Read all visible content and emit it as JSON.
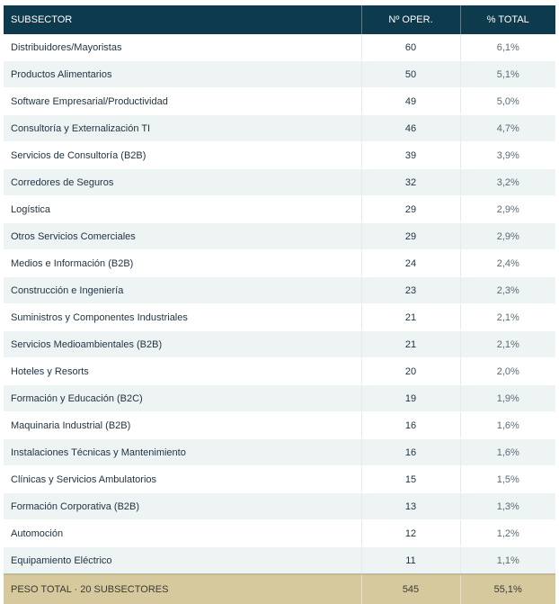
{
  "header": {
    "subsector": "SUBSECTOR",
    "operations": "Nº OPER.",
    "percent": "% TOTAL"
  },
  "rows": [
    {
      "name": "Distribuidores/Mayoristas",
      "operations": "60",
      "percent": "6,1%"
    },
    {
      "name": "Productos Alimentarios",
      "operations": "50",
      "percent": "5,1%"
    },
    {
      "name": "Software Empresarial/Productividad",
      "operations": "49",
      "percent": "5,0%"
    },
    {
      "name": "Consultoría y Externalización TI",
      "operations": "46",
      "percent": "4,7%"
    },
    {
      "name": "Servicios de Consultoría (B2B)",
      "operations": "39",
      "percent": "3,9%"
    },
    {
      "name": "Corredores de Seguros",
      "operations": "32",
      "percent": "3,2%"
    },
    {
      "name": "Logística",
      "operations": "29",
      "percent": "2,9%"
    },
    {
      "name": "Otros Servicios Comerciales",
      "operations": "29",
      "percent": "2,9%"
    },
    {
      "name": "Medios e Información (B2B)",
      "operations": "24",
      "percent": "2,4%"
    },
    {
      "name": "Construcción e Ingeniería",
      "operations": "23",
      "percent": "2,3%"
    },
    {
      "name": "Suministros y Componentes Industriales",
      "operations": "21",
      "percent": "2,1%"
    },
    {
      "name": "Servicios Medioambientales (B2B)",
      "operations": "21",
      "percent": "2,1%"
    },
    {
      "name": "Hoteles y Resorts",
      "operations": "20",
      "percent": "2,0%"
    },
    {
      "name": "Formación y Educación (B2C)",
      "operations": "19",
      "percent": "1,9%"
    },
    {
      "name": "Maquinaria Industrial (B2B)",
      "operations": "16",
      "percent": "1,6%"
    },
    {
      "name": "Instalaciones Técnicas y Mantenimiento",
      "operations": "16",
      "percent": "1,6%"
    },
    {
      "name": "Clínicas y Servicios Ambulatorios",
      "operations": "15",
      "percent": "1,5%"
    },
    {
      "name": "Formación Corporativa (B2B)",
      "operations": "13",
      "percent": "1,3%"
    },
    {
      "name": "Automoción",
      "operations": "12",
      "percent": "1,2%"
    },
    {
      "name": "Equipamiento Eléctrico",
      "operations": "11",
      "percent": "1,1%"
    }
  ],
  "footer": {
    "label": "PESO TOTAL · 20 SUBSECTORES",
    "operations": "545",
    "percent": "55,1%"
  },
  "colors": {
    "header_bg": "#0e3a4d",
    "stripe_bg": "#eef3f4",
    "footer_bg": "#d6c99e"
  }
}
